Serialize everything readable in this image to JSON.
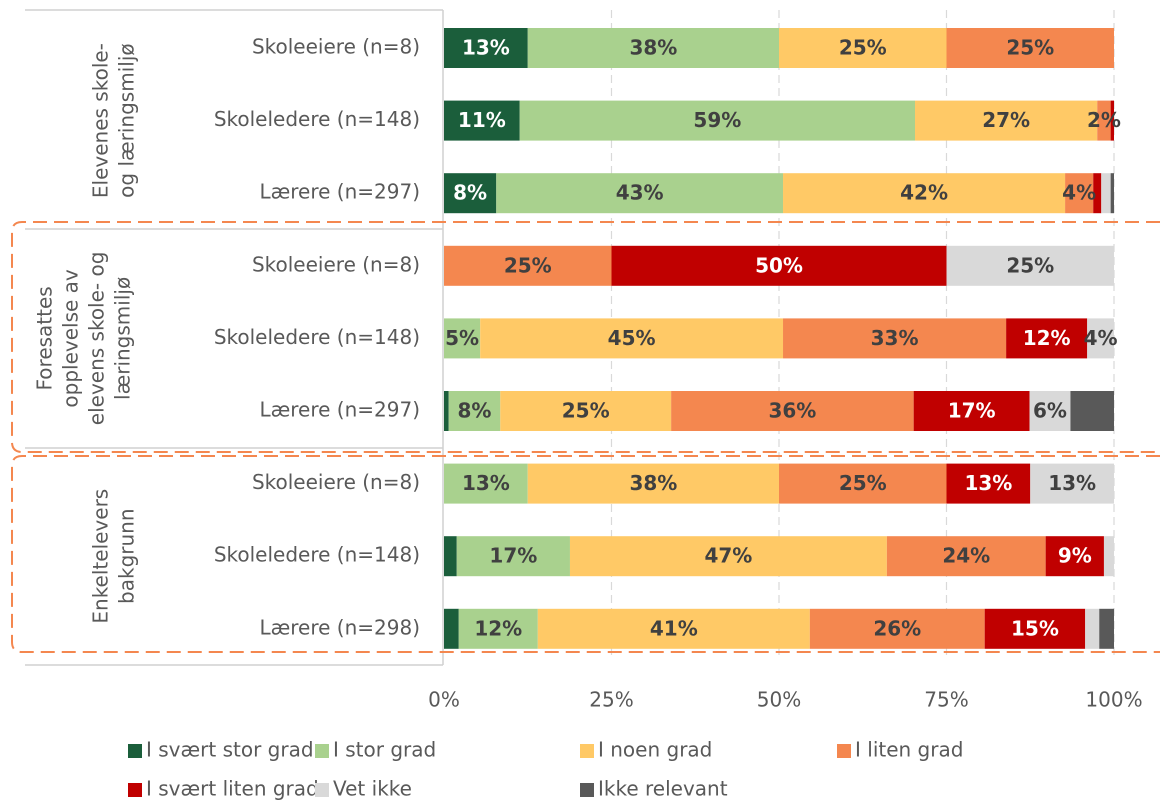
{
  "chart_data": {
    "type": "stacked_barh",
    "categories": [
      "Skoleeiere (n=8)",
      "Skoleledere (n=148)",
      "Lærere (n=297)",
      "Skoleeiere (n=8)",
      "Skoleledere (n=148)",
      "Lærere (n=297)",
      "Skoleeiere (n=8)",
      "Skoleledere (n=148)",
      "Lærere (n=298)"
    ],
    "groups": [
      {
        "label": [
          "Elevenes skole-",
          "og læringsmiljø"
        ]
      },
      {
        "label": [
          "Foresattes",
          "opplevelse av",
          "elevens skole- og",
          "læringsmiljø"
        ]
      },
      {
        "label": [
          "Enkeltelevers",
          "bakgrunn"
        ]
      }
    ],
    "series": [
      {
        "name": "I svært stor grad",
        "color": "#1b5e3b",
        "label_color": "#ffffff",
        "values": [
          12.5,
          11.3,
          7.8,
          0,
          0,
          0.7,
          0,
          1.9,
          2.2
        ],
        "value_labels": [
          "13%",
          "11%",
          "8%",
          null,
          null,
          null,
          null,
          null,
          null
        ]
      },
      {
        "name": "I stor grad",
        "color": "#a9d18e",
        "label_color": "#404040",
        "values": [
          37.5,
          59,
          42.8,
          0,
          5.4,
          7.7,
          12.5,
          16.9,
          11.8
        ],
        "value_labels": [
          "38%",
          "59%",
          "43%",
          null,
          "5%",
          "8%",
          "13%",
          "17%",
          "12%"
        ]
      },
      {
        "name": "I noen grad",
        "color": "#ffc966",
        "label_color": "#404040",
        "values": [
          25,
          27.2,
          42.1,
          0,
          45.2,
          25.5,
          37.5,
          47.3,
          40.6
        ],
        "value_labels": [
          "25%",
          "27%",
          "42%",
          null,
          "45%",
          "25%",
          "38%",
          "47%",
          "41%"
        ]
      },
      {
        "name": "I liten grad",
        "color": "#f4874f",
        "label_color": "#404040",
        "values": [
          25,
          2,
          4.2,
          25,
          33.3,
          36.2,
          25,
          23.7,
          26.1
        ],
        "value_labels": [
          "25%",
          "2%",
          "4%",
          "25%",
          "33%",
          "36%",
          "25%",
          "24%",
          "26%"
        ]
      },
      {
        "name": "I svært liten grad",
        "color": "#c00000",
        "label_color": "#ffffff",
        "values": [
          0,
          0.5,
          1.2,
          50,
          12.1,
          17.3,
          12.5,
          8.7,
          15
        ],
        "value_labels": [
          null,
          null,
          null,
          "50%",
          "12%",
          "17%",
          "13%",
          "9%",
          "15%"
        ]
      },
      {
        "name": "Vet ikke",
        "color": "#d9d9d9",
        "label_color": "#404040",
        "values": [
          0,
          0,
          1.4,
          25,
          4,
          6.1,
          12.5,
          1.5,
          2.1
        ],
        "value_labels": [
          null,
          null,
          null,
          "25%",
          "4%",
          "6%",
          "13%",
          null,
          null
        ]
      },
      {
        "name": "Ikke relevant",
        "color": "#595959",
        "label_color": "#ffffff",
        "values": [
          0,
          0,
          0.5,
          0,
          0,
          6.5,
          0,
          0,
          2.2
        ],
        "value_labels": [
          null,
          null,
          null,
          null,
          null,
          null,
          null,
          null,
          null
        ]
      }
    ],
    "xlim": [
      0,
      100
    ],
    "xticks": [
      {
        "value": 0,
        "label": "0%"
      },
      {
        "value": 25,
        "label": "25%"
      },
      {
        "value": 50,
        "label": "50%"
      },
      {
        "value": 75,
        "label": "75%"
      },
      {
        "value": 100,
        "label": "100%"
      }
    ],
    "grid": true
  }
}
